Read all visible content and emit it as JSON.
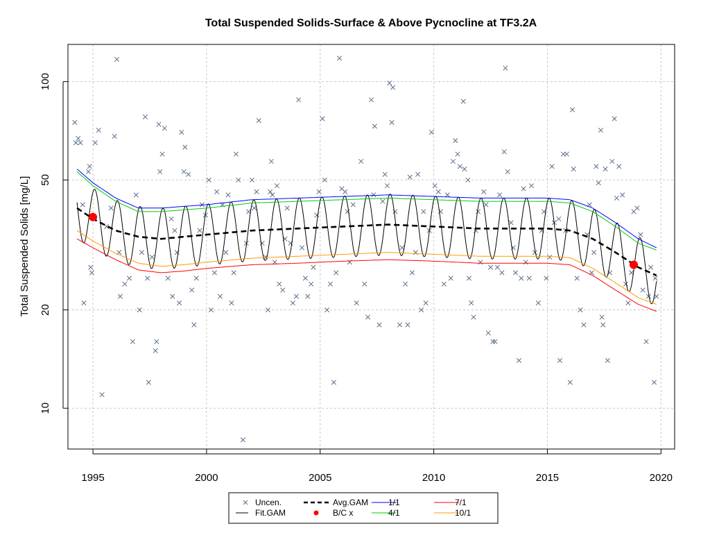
{
  "chart_data": {
    "type": "line",
    "title": "Total Suspended Solids-Surface & Above Pycnocline at TF3.2A",
    "ylabel": "Total Suspended Solids [mg/L]",
    "xlabel": "",
    "y_scale": "log",
    "ylim": [
      7.5,
      130
    ],
    "xlim": [
      1993.9,
      2020.6
    ],
    "x_ticks": [
      1995,
      2000,
      2005,
      2010,
      2015,
      2020
    ],
    "y_ticks": [
      10,
      20,
      50,
      100
    ],
    "grid": true,
    "legend_position": "bottom-center",
    "legend": [
      {
        "label": "Uncen.",
        "symbol": "x",
        "color": "#5a6e8c"
      },
      {
        "label": "Fit.GAM",
        "symbol": "line",
        "color": "#000000"
      },
      {
        "label": "Avg.GAM",
        "symbol": "dashed",
        "color": "#000000"
      },
      {
        "label": "B/C x",
        "symbol": "dot",
        "color": "#ff0000"
      },
      {
        "label": "1/1",
        "symbol": "line",
        "color": "#0000ff"
      },
      {
        "label": "4/1",
        "symbol": "line",
        "color": "#00cc00"
      },
      {
        "label": "7/1",
        "symbol": "line",
        "color": "#ff0000"
      },
      {
        "label": "10/1",
        "symbol": "line",
        "color": "#ff9900"
      }
    ],
    "series": [
      {
        "name": "Avg.GAM",
        "color": "#000000",
        "style": "dashed",
        "x": [
          1994.3,
          1995,
          1996,
          1997,
          1998,
          1999,
          2000,
          2002,
          2004,
          2006,
          2008,
          2010,
          2012,
          2014,
          2015,
          2016,
          2017,
          2018,
          2019,
          2019.8
        ],
        "y": [
          41,
          38,
          35,
          33.5,
          33,
          33.5,
          34,
          35,
          35.5,
          36,
          36.5,
          36,
          35.5,
          35.5,
          35.5,
          35,
          33,
          30,
          27,
          25.5
        ]
      },
      {
        "name": "1/1",
        "color": "#0000ff",
        "style": "solid",
        "x": [
          1994.3,
          1995,
          1996,
          1997,
          1998,
          1999,
          2000,
          2002,
          2004,
          2006,
          2008,
          2010,
          2012,
          2014,
          2015,
          2016,
          2017,
          2018,
          2019,
          2019.8
        ],
        "y": [
          54,
          49,
          44,
          41,
          41,
          41.5,
          42,
          43.5,
          44,
          44.5,
          45,
          44.5,
          44,
          44,
          44,
          43.5,
          41,
          37,
          33,
          31
        ]
      },
      {
        "name": "4/1",
        "color": "#00cc00",
        "style": "solid",
        "x": [
          1994.3,
          1995,
          1996,
          1997,
          1998,
          1999,
          2000,
          2002,
          2004,
          2006,
          2008,
          2010,
          2012,
          2014,
          2015,
          2016,
          2017,
          2018,
          2019,
          2019.8
        ],
        "y": [
          53,
          48,
          43,
          40,
          40,
          40.5,
          41,
          42.5,
          43,
          43.5,
          44,
          43.5,
          43,
          43,
          43,
          42.5,
          40,
          36,
          32,
          30.5
        ]
      },
      {
        "name": "7/1",
        "color": "#ff0000",
        "style": "solid",
        "x": [
          1994.3,
          1995,
          1996,
          1997,
          1998,
          1999,
          2000,
          2002,
          2004,
          2006,
          2008,
          2010,
          2012,
          2014,
          2015,
          2016,
          2017,
          2018,
          2019,
          2019.8
        ],
        "y": [
          33,
          31,
          28.5,
          26.5,
          26,
          26.3,
          26.8,
          27.5,
          27.8,
          28.2,
          28.5,
          28.2,
          27.8,
          27.8,
          27.8,
          27.5,
          25.5,
          23,
          20.8,
          19.8
        ]
      },
      {
        "name": "10/1",
        "color": "#ff9900",
        "style": "solid",
        "x": [
          1994.3,
          1995,
          1996,
          1997,
          1998,
          1999,
          2000,
          2002,
          2004,
          2006,
          2008,
          2010,
          2012,
          2014,
          2015,
          2016,
          2017,
          2018,
          2019,
          2019.8
        ],
        "y": [
          35,
          32.5,
          29.8,
          27.8,
          27.2,
          27.5,
          28,
          28.8,
          29.2,
          29.6,
          30,
          29.6,
          29.2,
          29.2,
          29.2,
          28.9,
          26.8,
          24.2,
          21.8,
          20.8
        ]
      }
    ],
    "fit_gam": {
      "name": "Fit.GAM",
      "color": "#000000",
      "peak_month_fraction": 0.08,
      "amplitude_ratio": 1.24
    },
    "bc_points": [
      {
        "x": 1995.0,
        "y": 38.5
      },
      {
        "x": 2018.8,
        "y": 27.5
      }
    ],
    "points": [
      [
        1994.2,
        75
      ],
      [
        1994.25,
        65
      ],
      [
        1994.35,
        67
      ],
      [
        1994.45,
        65
      ],
      [
        1994.55,
        42
      ],
      [
        1994.6,
        21
      ],
      [
        1994.8,
        53
      ],
      [
        1994.85,
        55
      ],
      [
        1994.9,
        27
      ],
      [
        1994.95,
        26
      ],
      [
        1995.1,
        65
      ],
      [
        1995.25,
        71
      ],
      [
        1995.4,
        11
      ],
      [
        1995.6,
        36
      ],
      [
        1995.8,
        41
      ],
      [
        1995.95,
        68
      ],
      [
        1996.05,
        117
      ],
      [
        1996.15,
        30
      ],
      [
        1996.2,
        22
      ],
      [
        1996.4,
        24
      ],
      [
        1996.6,
        25
      ],
      [
        1996.75,
        16
      ],
      [
        1996.9,
        45
      ],
      [
        1997.05,
        20
      ],
      [
        1997.15,
        30
      ],
      [
        1997.3,
        78
      ],
      [
        1997.4,
        25
      ],
      [
        1997.45,
        12
      ],
      [
        1997.6,
        29
      ],
      [
        1997.75,
        15
      ],
      [
        1997.8,
        16
      ],
      [
        1997.9,
        74
      ],
      [
        1997.95,
        53
      ],
      [
        1998.05,
        60
      ],
      [
        1998.15,
        72
      ],
      [
        1998.3,
        25
      ],
      [
        1998.45,
        38
      ],
      [
        1998.5,
        22
      ],
      [
        1998.6,
        35
      ],
      [
        1998.7,
        30
      ],
      [
        1998.8,
        21
      ],
      [
        1998.9,
        70
      ],
      [
        1999.0,
        53
      ],
      [
        1999.05,
        63
      ],
      [
        1999.2,
        52
      ],
      [
        1999.35,
        23
      ],
      [
        1999.45,
        18
      ],
      [
        1999.55,
        25
      ],
      [
        1999.7,
        35
      ],
      [
        1999.8,
        42
      ],
      [
        1999.95,
        39
      ],
      [
        2000.1,
        50
      ],
      [
        2000.2,
        20
      ],
      [
        2000.35,
        26
      ],
      [
        2000.45,
        46
      ],
      [
        2000.6,
        22
      ],
      [
        2000.7,
        42
      ],
      [
        2000.85,
        30
      ],
      [
        2000.95,
        45
      ],
      [
        2001.1,
        21
      ],
      [
        2001.2,
        26
      ],
      [
        2001.3,
        60
      ],
      [
        2001.4,
        50
      ],
      [
        2001.6,
        8
      ],
      [
        2001.75,
        32
      ],
      [
        2001.85,
        40
      ],
      [
        2002.0,
        50
      ],
      [
        2002.1,
        41
      ],
      [
        2002.2,
        46
      ],
      [
        2002.3,
        76
      ],
      [
        2002.45,
        32
      ],
      [
        2002.6,
        29
      ],
      [
        2002.7,
        20
      ],
      [
        2002.8,
        46
      ],
      [
        2002.85,
        57
      ],
      [
        2002.9,
        45
      ],
      [
        2003.0,
        28
      ],
      [
        2003.1,
        48
      ],
      [
        2003.2,
        24
      ],
      [
        2003.35,
        23
      ],
      [
        2003.45,
        33
      ],
      [
        2003.55,
        41
      ],
      [
        2003.7,
        32
      ],
      [
        2003.8,
        21
      ],
      [
        2003.95,
        22
      ],
      [
        2004.05,
        88
      ],
      [
        2004.2,
        31
      ],
      [
        2004.35,
        25
      ],
      [
        2004.45,
        22
      ],
      [
        2004.6,
        24
      ],
      [
        2004.7,
        27
      ],
      [
        2004.85,
        39
      ],
      [
        2004.95,
        46
      ],
      [
        2005.1,
        77
      ],
      [
        2005.2,
        50
      ],
      [
        2005.3,
        20
      ],
      [
        2005.45,
        24
      ],
      [
        2005.6,
        12
      ],
      [
        2005.7,
        26
      ],
      [
        2005.85,
        118
      ],
      [
        2005.95,
        47
      ],
      [
        2006.1,
        46
      ],
      [
        2006.2,
        40
      ],
      [
        2006.3,
        28
      ],
      [
        2006.45,
        42
      ],
      [
        2006.6,
        21
      ],
      [
        2006.8,
        57
      ],
      [
        2006.95,
        24
      ],
      [
        2007.1,
        19
      ],
      [
        2007.25,
        88
      ],
      [
        2007.35,
        45
      ],
      [
        2007.4,
        73
      ],
      [
        2007.6,
        18
      ],
      [
        2007.75,
        43
      ],
      [
        2007.85,
        52
      ],
      [
        2007.95,
        48
      ],
      [
        2008.05,
        99
      ],
      [
        2008.15,
        75
      ],
      [
        2008.2,
        96
      ],
      [
        2008.3,
        40
      ],
      [
        2008.5,
        18
      ],
      [
        2008.6,
        31
      ],
      [
        2008.75,
        24
      ],
      [
        2008.85,
        18
      ],
      [
        2008.95,
        51
      ],
      [
        2009.05,
        26
      ],
      [
        2009.2,
        30
      ],
      [
        2009.3,
        52
      ],
      [
        2009.45,
        20
      ],
      [
        2009.55,
        40
      ],
      [
        2009.65,
        21
      ],
      [
        2009.8,
        35
      ],
      [
        2009.9,
        70
      ],
      [
        2010.05,
        48
      ],
      [
        2010.2,
        46
      ],
      [
        2010.3,
        40
      ],
      [
        2010.45,
        24
      ],
      [
        2010.6,
        45
      ],
      [
        2010.75,
        25
      ],
      [
        2010.85,
        57
      ],
      [
        2010.95,
        66
      ],
      [
        2011.05,
        60
      ],
      [
        2011.15,
        55
      ],
      [
        2011.3,
        87
      ],
      [
        2011.35,
        54
      ],
      [
        2011.5,
        50
      ],
      [
        2011.55,
        25
      ],
      [
        2011.65,
        21
      ],
      [
        2011.75,
        19
      ],
      [
        2011.85,
        35
      ],
      [
        2011.95,
        40
      ],
      [
        2012.05,
        28
      ],
      [
        2012.2,
        46
      ],
      [
        2012.3,
        42
      ],
      [
        2012.4,
        17
      ],
      [
        2012.5,
        27
      ],
      [
        2012.6,
        16
      ],
      [
        2012.7,
        16
      ],
      [
        2012.8,
        27
      ],
      [
        2012.9,
        45
      ],
      [
        2013.0,
        26
      ],
      [
        2013.1,
        61
      ],
      [
        2013.15,
        110
      ],
      [
        2013.25,
        53
      ],
      [
        2013.4,
        37
      ],
      [
        2013.5,
        31
      ],
      [
        2013.6,
        26
      ],
      [
        2013.75,
        14
      ],
      [
        2013.85,
        25
      ],
      [
        2013.95,
        47
      ],
      [
        2014.05,
        28
      ],
      [
        2014.2,
        25
      ],
      [
        2014.3,
        48
      ],
      [
        2014.45,
        30
      ],
      [
        2014.6,
        21
      ],
      [
        2014.75,
        35
      ],
      [
        2014.85,
        40
      ],
      [
        2014.95,
        25
      ],
      [
        2015.1,
        29
      ],
      [
        2015.2,
        55
      ],
      [
        2015.3,
        37
      ],
      [
        2015.5,
        38
      ],
      [
        2015.55,
        14
      ],
      [
        2015.7,
        60
      ],
      [
        2015.8,
        35
      ],
      [
        2015.85,
        60
      ],
      [
        2016.0,
        12
      ],
      [
        2016.1,
        82
      ],
      [
        2016.15,
        54
      ],
      [
        2016.3,
        25
      ],
      [
        2016.45,
        20
      ],
      [
        2016.6,
        18
      ],
      [
        2016.75,
        34
      ],
      [
        2016.85,
        42
      ],
      [
        2016.95,
        26
      ],
      [
        2017.05,
        30
      ],
      [
        2017.15,
        55
      ],
      [
        2017.25,
        49
      ],
      [
        2017.35,
        71
      ],
      [
        2017.4,
        19
      ],
      [
        2017.45,
        18
      ],
      [
        2017.55,
        54
      ],
      [
        2017.65,
        14
      ],
      [
        2017.75,
        26
      ],
      [
        2017.85,
        57
      ],
      [
        2017.95,
        77
      ],
      [
        2018.05,
        44
      ],
      [
        2018.15,
        55
      ],
      [
        2018.3,
        45
      ],
      [
        2018.45,
        24
      ],
      [
        2018.55,
        21
      ],
      [
        2018.7,
        26
      ],
      [
        2018.8,
        40
      ],
      [
        2018.95,
        41
      ],
      [
        2019.1,
        34
      ],
      [
        2019.2,
        23
      ],
      [
        2019.35,
        16
      ],
      [
        2019.45,
        22
      ],
      [
        2019.55,
        27
      ],
      [
        2019.7,
        12
      ],
      [
        2019.75,
        25
      ],
      [
        2019.8,
        22
      ]
    ]
  }
}
